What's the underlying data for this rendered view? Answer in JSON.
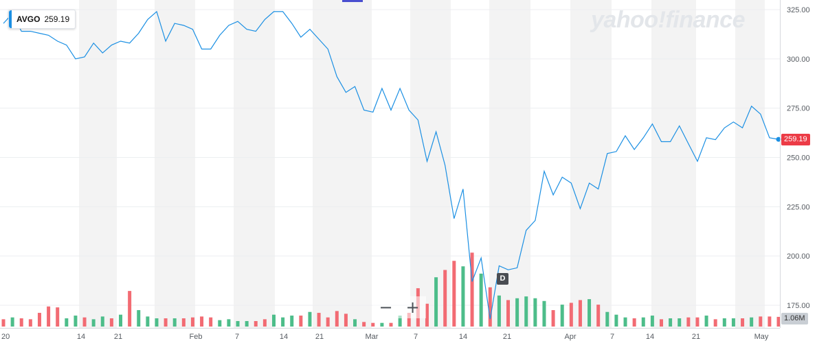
{
  "watermark": "yahoo!finance",
  "tooltip": {
    "symbol": "AVGO",
    "price": "259.19"
  },
  "last_price_label": "259.19",
  "volume_label": "1.06M",
  "event_marker": "D",
  "zoom": {
    "minus": "−",
    "plus": "+"
  },
  "colors": {
    "line": "#1a8fe3",
    "up": "#4dbd8a",
    "down": "#f26b73",
    "badge_price": "#ec3b46",
    "grid": "#eceef0",
    "band": "#f3f3f3"
  },
  "chart_data": {
    "type": "line",
    "title": "",
    "series": [
      {
        "name": "AVGO",
        "values": [
          318,
          323,
          314,
          314,
          313,
          312,
          309,
          307,
          300,
          301,
          308,
          303,
          307,
          309,
          308,
          313,
          320,
          324,
          309,
          318,
          317,
          315,
          305,
          305,
          312,
          317,
          319,
          315,
          314,
          320,
          324,
          324,
          318,
          311,
          315,
          310,
          305,
          291,
          283,
          286,
          274,
          273,
          285,
          274,
          285,
          274,
          269,
          248,
          263,
          246,
          219,
          234,
          187,
          199,
          168,
          195,
          193,
          194,
          213,
          218,
          243,
          231,
          240,
          237,
          224,
          237,
          234,
          252,
          253,
          261,
          254,
          260,
          267,
          258,
          258,
          266,
          257,
          248,
          260,
          259,
          265,
          268,
          265,
          276,
          272,
          260,
          259.19
        ]
      }
    ],
    "volume_series": {
      "name": "Volume",
      "values": [
        0.8,
        1.0,
        0.9,
        0.8,
        1.5,
        2.2,
        2.1,
        0.9,
        1.2,
        1.0,
        0.8,
        1.1,
        0.9,
        1.3,
        3.9,
        1.8,
        1.1,
        0.9,
        0.9,
        0.9,
        0.9,
        1.0,
        1.1,
        1.0,
        0.7,
        0.8,
        0.6,
        0.6,
        0.6,
        0.8,
        1.3,
        1.0,
        1.2,
        1.2,
        1.6,
        1.5,
        1.0,
        1.7,
        1.4,
        0.8,
        0.5,
        0.4,
        0.4,
        0.4,
        1.2,
        1.5,
        4.2,
        2.5,
        5.4,
        6.2,
        7.2,
        6.6,
        8.1,
        5.8,
        4.3,
        3.4,
        2.9,
        3.1,
        3.3,
        3.1,
        2.8,
        1.8,
        2.4,
        2.6,
        2.9,
        3.0,
        2.4,
        1.6,
        1.3,
        1.0,
        0.9,
        1.0,
        1.2,
        0.8,
        0.9,
        0.9,
        1.0,
        1.0,
        1.2,
        0.8,
        0.9,
        0.9,
        0.9,
        1.0,
        1.1,
        1.1,
        1.06
      ],
      "directions": [
        "d",
        "u",
        "d",
        "d",
        "d",
        "d",
        "d",
        "u",
        "u",
        "d",
        "u",
        "u",
        "d",
        "u",
        "d",
        "u",
        "u",
        "u",
        "d",
        "u",
        "d",
        "d",
        "d",
        "d",
        "u",
        "u",
        "u",
        "u",
        "d",
        "d",
        "u",
        "u",
        "u",
        "d",
        "u",
        "d",
        "d",
        "d",
        "d",
        "u",
        "d",
        "d",
        "u",
        "d",
        "u",
        "d",
        "d",
        "d",
        "u",
        "d",
        "d",
        "u",
        "d",
        "u",
        "d",
        "u",
        "d",
        "u",
        "u",
        "u",
        "u",
        "d",
        "u",
        "d",
        "d",
        "u",
        "d",
        "u",
        "u",
        "u",
        "d",
        "u",
        "u",
        "d",
        "u",
        "u",
        "d",
        "d",
        "u",
        "d",
        "u",
        "u",
        "d",
        "u",
        "d",
        "d",
        "d"
      ]
    },
    "x_tick_labels": [
      "20",
      "14",
      "21",
      "Feb",
      "7",
      "14",
      "21",
      "Mar",
      "7",
      "14",
      "21",
      "Apr",
      "7",
      "14",
      "21",
      "May"
    ],
    "y_tick_labels": [
      "325.00",
      "300.00",
      "275.00",
      "250.00",
      "225.00",
      "200.00",
      "175.00"
    ],
    "y_ticks": [
      325,
      300,
      275,
      250,
      225,
      200,
      175
    ],
    "ylim": [
      168,
      330
    ],
    "grid": true,
    "y_axis_position": "right"
  }
}
